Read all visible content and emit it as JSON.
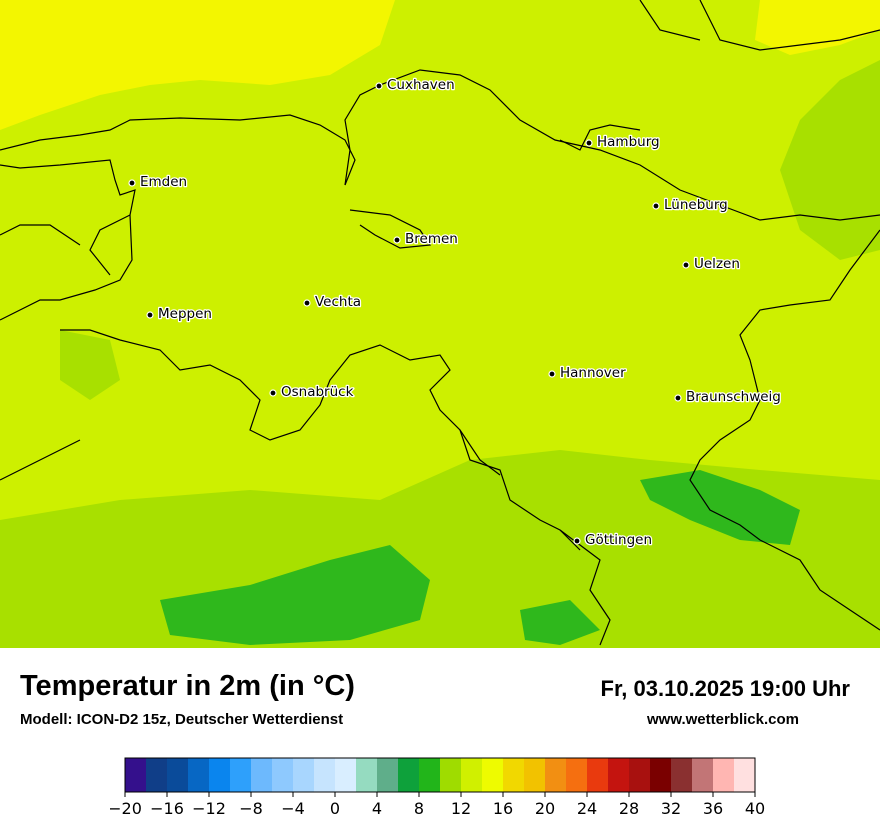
{
  "map": {
    "cities": [
      {
        "name": "Cuxhaven",
        "icon": "city-dot"
      },
      {
        "name": "Hamburg",
        "icon": "city-dot"
      },
      {
        "name": "Emden",
        "icon": "city-dot"
      },
      {
        "name": "Lüneburg",
        "icon": "city-dot"
      },
      {
        "name": "Bremen",
        "icon": "city-dot"
      },
      {
        "name": "Uelzen",
        "icon": "city-dot"
      },
      {
        "name": "Vechta",
        "icon": "city-dot"
      },
      {
        "name": "Meppen",
        "icon": "city-dot"
      },
      {
        "name": "Hannover",
        "icon": "city-dot"
      },
      {
        "name": "Osnabrück",
        "icon": "city-dot"
      },
      {
        "name": "Braunschweig",
        "icon": "city-dot"
      },
      {
        "name": "Göttingen",
        "icon": "city-dot"
      }
    ],
    "colors": {
      "sea_warm": "#f3f600",
      "land_base": "#cdf000",
      "land_mild": "#a8e000",
      "land_cool": "#2fb81c",
      "border": "#000000"
    }
  },
  "footer": {
    "title": "Temperatur in 2m (in °C)",
    "subtitle": "Modell: ICON-D2 15z, Deutscher Wetterdienst",
    "datetime": "Fr, 03.10.2025 19:00 Uhr",
    "website": "www.wetterblick.com"
  },
  "legend": {
    "min": -20,
    "max": 40,
    "step": 2,
    "tick_labels": [
      "−20",
      "−16",
      "−12",
      "−8",
      "−4",
      "0",
      "4",
      "8",
      "12",
      "16",
      "20",
      "24",
      "28",
      "32",
      "36",
      "40"
    ],
    "colors": [
      "#34108c",
      "#103e88",
      "#0a4b9a",
      "#0767c4",
      "#0a85ee",
      "#2ea0fb",
      "#6db9fd",
      "#8ec9fe",
      "#a8d6fe",
      "#c6e4fe",
      "#d9eeff",
      "#95dbc0",
      "#5fae8a",
      "#0ea13b",
      "#22b51a",
      "#9fdc00",
      "#d0f000",
      "#eefb00",
      "#f1d800",
      "#f2c200",
      "#f28f12",
      "#f56f10",
      "#e93a0e",
      "#c4140f",
      "#a8110f",
      "#7a0000",
      "#8a3030",
      "#c27576",
      "#ffb6b2",
      "#ffe0e0"
    ]
  }
}
